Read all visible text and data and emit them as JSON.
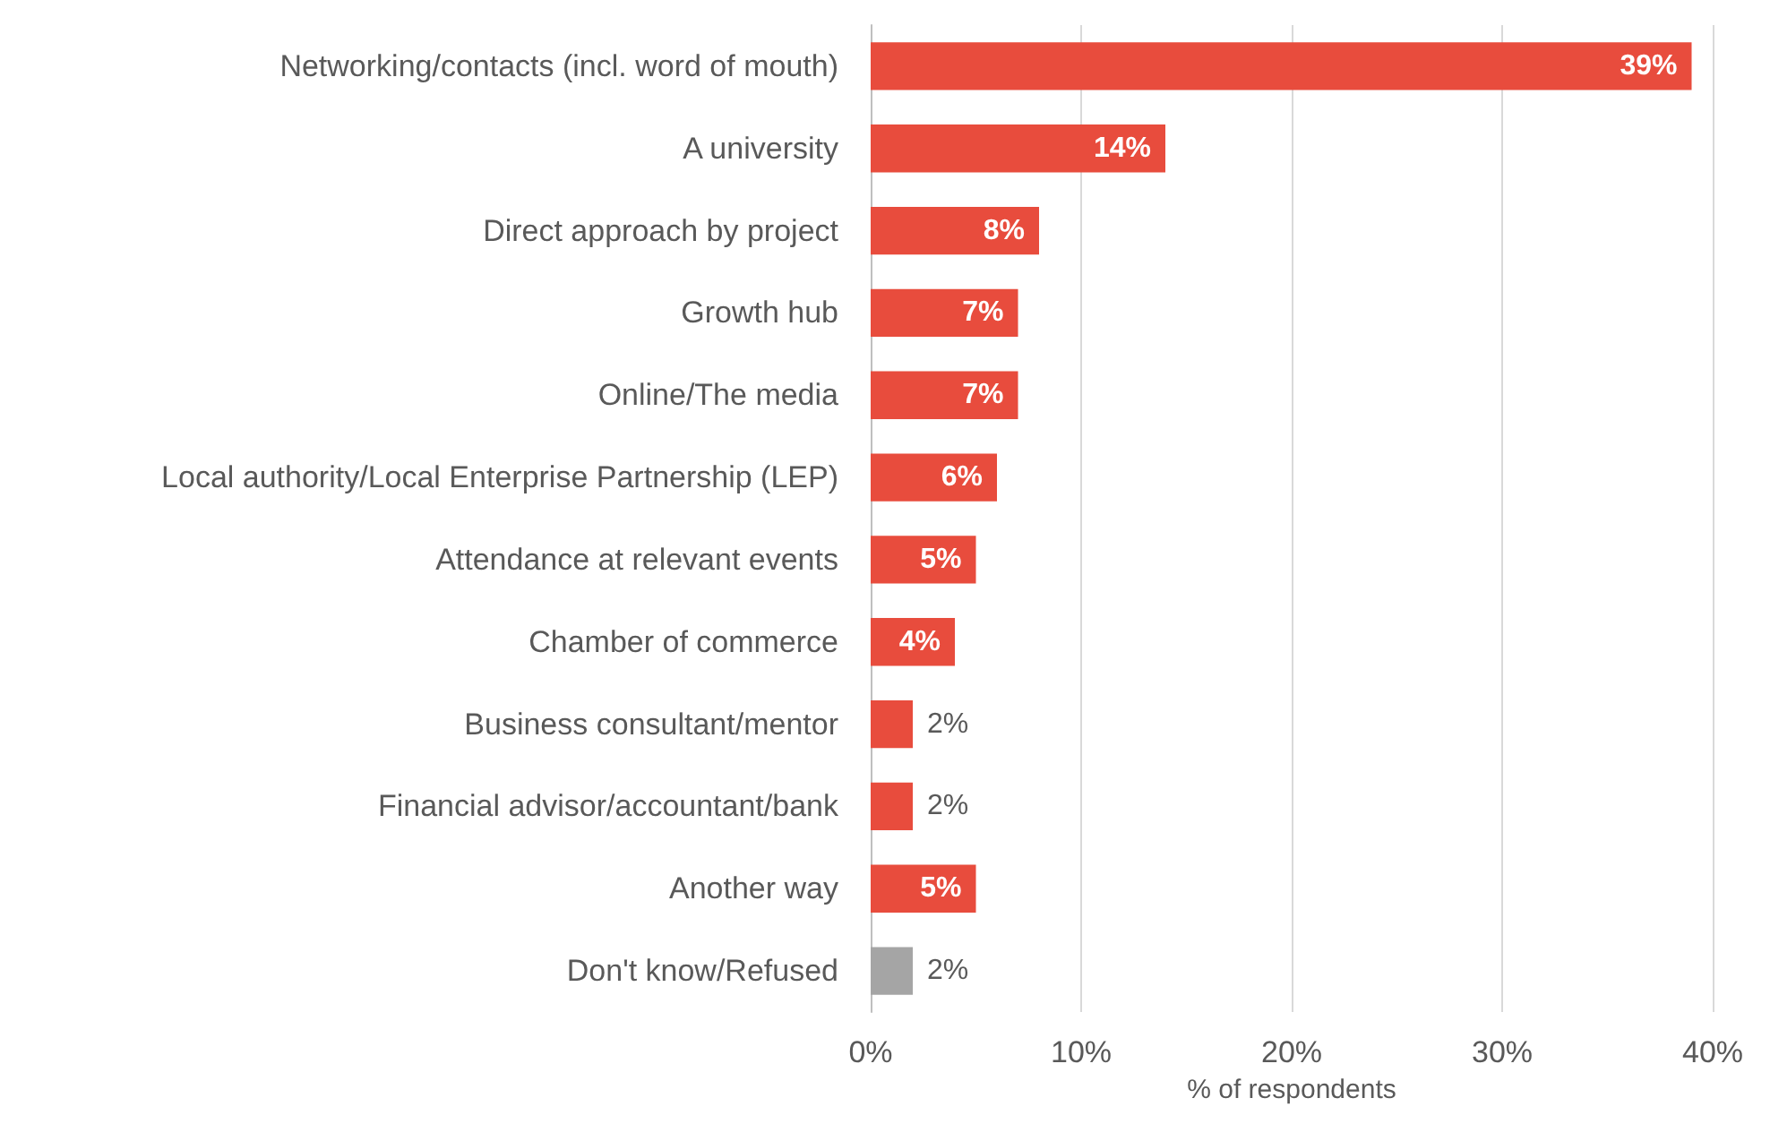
{
  "chart_data": {
    "type": "bar",
    "orientation": "horizontal",
    "xlabel": "% of respondents",
    "categories": [
      "Networking/contacts (incl. word of mouth)",
      "A university",
      "Direct approach by project",
      "Growth hub",
      "Online/The media",
      "Local authority/Local Enterprise Partnership (LEP)",
      "Attendance at relevant events",
      "Chamber of commerce",
      "Business consultant/mentor",
      "Financial advisor/accountant/bank",
      "Another way",
      "Don't know/Refused"
    ],
    "values": [
      39,
      14,
      8,
      7,
      7,
      6,
      5,
      4,
      2,
      2,
      5,
      2
    ],
    "value_labels": [
      "39%",
      "14%",
      "8%",
      "7%",
      "7%",
      "6%",
      "5%",
      "4%",
      "2%",
      "2%",
      "5%",
      "2%"
    ],
    "colors": [
      "#e84c3d",
      "#e84c3d",
      "#e84c3d",
      "#e84c3d",
      "#e84c3d",
      "#e84c3d",
      "#e84c3d",
      "#e84c3d",
      "#e84c3d",
      "#e84c3d",
      "#e84c3d",
      "#a5a5a5"
    ],
    "xlim": [
      0,
      40
    ],
    "xticks": [
      {
        "value": 0,
        "label": "0%"
      },
      {
        "value": 10,
        "label": "10%"
      },
      {
        "value": 20,
        "label": "20%"
      },
      {
        "value": 30,
        "label": "30%"
      },
      {
        "value": 40,
        "label": "40%"
      }
    ],
    "grid": "x"
  }
}
